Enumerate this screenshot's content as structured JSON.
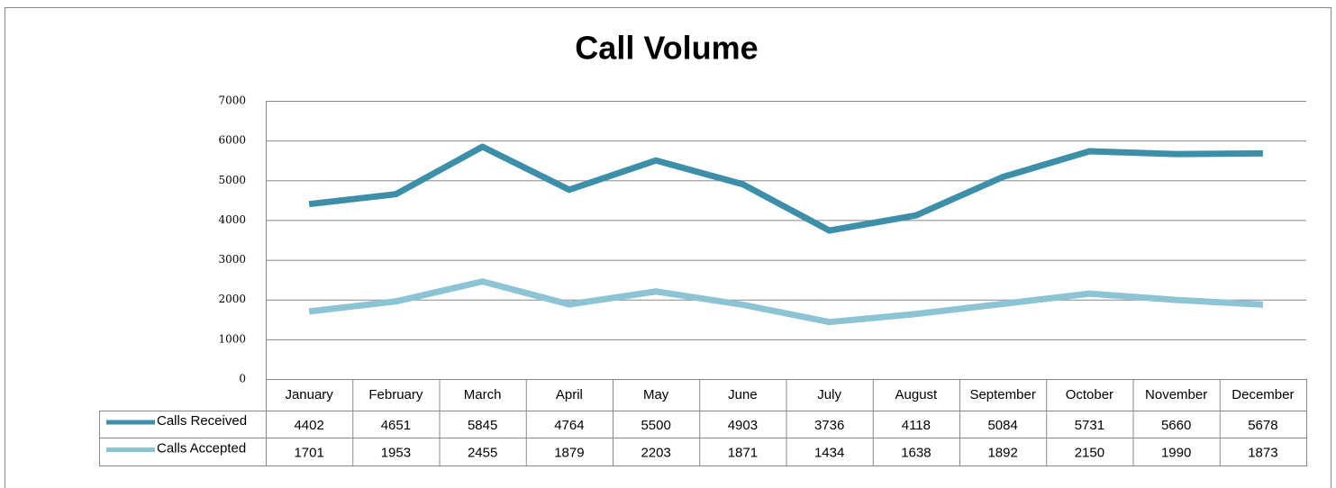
{
  "chart_data": {
    "type": "line",
    "title": "Call Volume",
    "categories": [
      "January",
      "February",
      "March",
      "April",
      "May",
      "June",
      "July",
      "August",
      "September",
      "October",
      "November",
      "December"
    ],
    "series": [
      {
        "name": "Calls Received",
        "color": "#3d8fa9",
        "values": [
          4402,
          4651,
          5845,
          4764,
          5500,
          4903,
          3736,
          4118,
          5084,
          5731,
          5660,
          5678
        ]
      },
      {
        "name": "Calls Accepted",
        "color": "#8cc3d5",
        "values": [
          1701,
          1953,
          2455,
          1879,
          2203,
          1871,
          1434,
          1638,
          1892,
          2150,
          1990,
          1873
        ]
      }
    ],
    "ylim": [
      0,
      7000
    ],
    "yticks": [
      0,
      1000,
      2000,
      3000,
      4000,
      5000,
      6000,
      7000
    ],
    "grid": true
  }
}
